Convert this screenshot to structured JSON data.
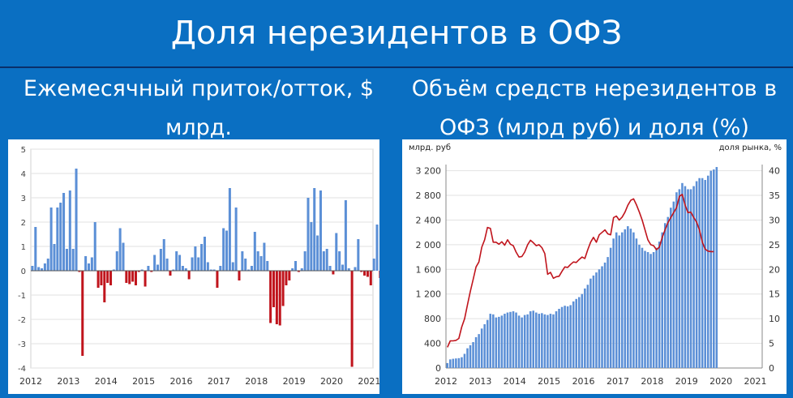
{
  "header": {
    "title": "Доля нерезидентов в ОФЗ",
    "left_subtitle": "Ежемесячный приток/отток, $ млрд.",
    "right_subtitle": "Объём средств нерезидентов в ОФЗ (млрд руб) и доля (%)"
  },
  "colors": {
    "positive": "#5b8fd6",
    "negative": "#c0141c",
    "line": "#c0141c",
    "background": "#0a6fc2"
  },
  "chart_data": [
    {
      "type": "bar",
      "ylim": [
        -4,
        5
      ],
      "yticks": [
        -4,
        -3,
        -2,
        -1,
        0,
        1,
        2,
        3,
        4,
        5
      ],
      "xticks": [
        "2012",
        "2013",
        "2014",
        "2015",
        "2016",
        "2017",
        "2018",
        "2019",
        "2020",
        "2021"
      ],
      "x_start_year": 2012,
      "values": [
        0.2,
        1.8,
        0.15,
        0.1,
        0.3,
        0.5,
        2.6,
        1.1,
        2.6,
        2.8,
        3.2,
        0.9,
        3.3,
        0.9,
        4.2,
        -0.05,
        -3.5,
        0.6,
        0.3,
        0.55,
        2.0,
        -0.7,
        -0.6,
        -1.3,
        -0.5,
        -0.6,
        0.05,
        0.8,
        1.75,
        1.15,
        -0.5,
        -0.55,
        -0.45,
        -0.6,
        -0.05,
        0.05,
        -0.65,
        0.2,
        -0.05,
        0.65,
        0.25,
        0.9,
        1.3,
        0.5,
        -0.2,
        0.05,
        0.8,
        0.65,
        0.2,
        0.1,
        -0.35,
        0.55,
        1.0,
        0.55,
        1.1,
        1.4,
        0.35,
        0.05,
        0.05,
        -0.7,
        0.2,
        1.75,
        1.65,
        3.4,
        0.35,
        2.6,
        -0.4,
        0.8,
        0.5,
        0.05,
        0.2,
        1.6,
        0.8,
        0.6,
        1.15,
        0.4,
        -2.15,
        -1.5,
        -2.2,
        -2.25,
        -1.45,
        -0.6,
        -0.4,
        0.1,
        0.4,
        -0.05,
        0.1,
        0.8,
        3.0,
        2.0,
        3.4,
        1.45,
        3.3,
        0.8,
        0.9,
        0.2,
        -0.15,
        1.55,
        0.8,
        0.25,
        2.9,
        0.1,
        -3.95,
        0.15,
        1.3,
        -0.05,
        -0.2,
        -0.25,
        -0.6,
        0.5,
        1.9,
        -0.3,
        0.1
      ]
    },
    {
      "type": "bar+line",
      "ylabel": "млрд. руб",
      "y2label": "доля рынка, %",
      "ylim": [
        0,
        3300
      ],
      "yticks": [
        0,
        400,
        800,
        1200,
        1600,
        2000,
        2400,
        2800,
        3200
      ],
      "y2lim": [
        0,
        41.25
      ],
      "y2ticks": [
        0,
        5,
        10,
        15,
        20,
        25,
        30,
        35,
        40
      ],
      "xticks": [
        "2012",
        "2013",
        "2014",
        "2015",
        "2016",
        "2017",
        "2018",
        "2019",
        "2020",
        "2021"
      ],
      "x_start_year": 2012,
      "series": [
        {
          "name": "bars",
          "values": [
            80,
            140,
            150,
            155,
            160,
            175,
            230,
            320,
            370,
            420,
            500,
            550,
            640,
            710,
            780,
            880,
            870,
            820,
            830,
            850,
            880,
            900,
            910,
            920,
            900,
            850,
            820,
            860,
            870,
            920,
            930,
            900,
            880,
            890,
            870,
            860,
            880,
            870,
            920,
            960,
            990,
            1010,
            1000,
            1020,
            1080,
            1120,
            1150,
            1200,
            1290,
            1350,
            1450,
            1500,
            1550,
            1600,
            1650,
            1710,
            1800,
            1950,
            2100,
            2200,
            2150,
            2200,
            2250,
            2300,
            2260,
            2200,
            2100,
            2000,
            1950,
            1900,
            1880,
            1850,
            1880,
            1950,
            2050,
            2200,
            2350,
            2450,
            2600,
            2700,
            2850,
            2900,
            3000,
            2950,
            2900,
            2900,
            2950,
            3030,
            3080,
            3080,
            3050,
            3120,
            3200,
            3220,
            3260
          ]
        },
        {
          "name": "line",
          "values": [
            4.2,
            5.5,
            5.5,
            5.6,
            6,
            8.3,
            10,
            12.8,
            15.5,
            18,
            20.5,
            21.5,
            24.5,
            26,
            28.5,
            28.3,
            25.5,
            25.5,
            25.1,
            25.6,
            24.9,
            26,
            25.1,
            24.8,
            23.5,
            22.5,
            22.6,
            23.5,
            25,
            25.9,
            25.4,
            24.8,
            25,
            24.4,
            23.2,
            19,
            19.4,
            18.2,
            18.5,
            18.6,
            19.6,
            20.5,
            20.4,
            21,
            21.5,
            21.4,
            22,
            22.5,
            22.2,
            24,
            25.5,
            26.5,
            25.5,
            27,
            27.5,
            28,
            27.2,
            27,
            30.5,
            30.8,
            30,
            30.6,
            31.6,
            33,
            34,
            34.3,
            33.1,
            31.6,
            30,
            28,
            26,
            25,
            24.8,
            24,
            24.5,
            26.5,
            28,
            29.5,
            30.5,
            31.5,
            32.5,
            34.8,
            35.2,
            33,
            31.5,
            31.6,
            30.5,
            29.6,
            28,
            25.5,
            24.1,
            23.7,
            23.6,
            23.6
          ]
        }
      ]
    }
  ]
}
